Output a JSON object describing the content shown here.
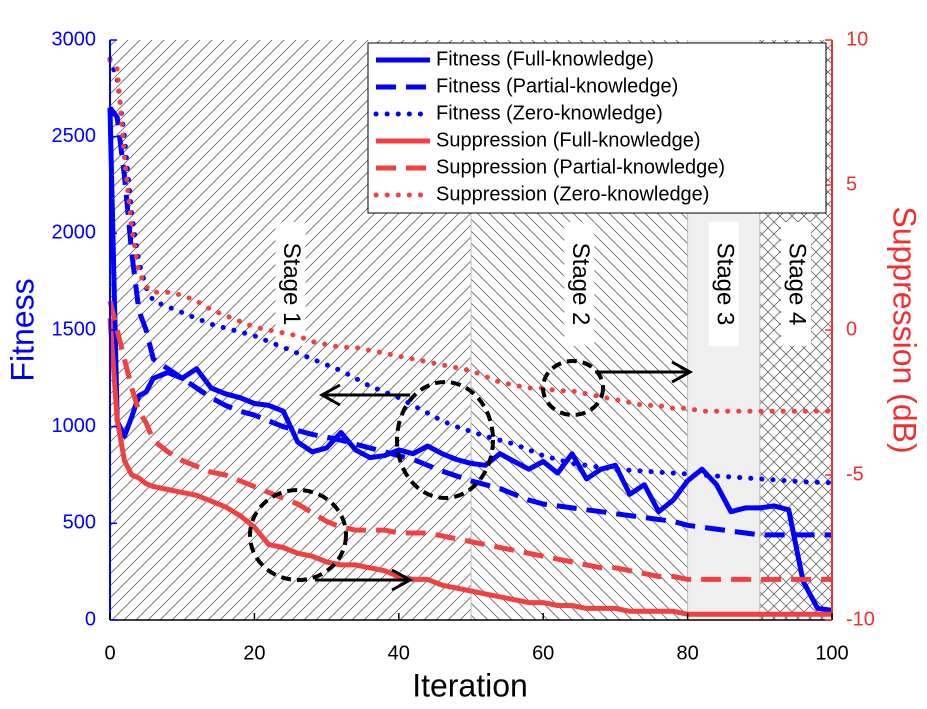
{
  "chart_data": {
    "type": "line",
    "x_label": "Iteration",
    "y_label": "Fitness",
    "y2_label": "Suppression (dB)",
    "x": [
      0,
      1,
      2,
      3,
      4,
      5,
      6,
      8,
      10,
      12,
      14,
      16,
      18,
      20,
      22,
      24,
      26,
      28,
      30,
      32,
      34,
      36,
      38,
      40,
      42,
      44,
      46,
      48,
      50,
      52,
      54,
      56,
      58,
      60,
      62,
      64,
      66,
      68,
      70,
      72,
      74,
      76,
      78,
      80,
      82,
      84,
      86,
      88,
      90,
      92,
      94,
      96,
      98,
      100
    ],
    "xlim": [
      0,
      100
    ],
    "xticks": [
      0,
      20,
      40,
      60,
      80,
      100
    ],
    "ylim": [
      0,
      3000
    ],
    "yticks": [
      0,
      500,
      1000,
      1500,
      2000,
      2500,
      3000
    ],
    "y2lim": [
      -10,
      10
    ],
    "y2ticks": [
      -10,
      -5,
      0,
      5,
      10
    ],
    "legend": "upper right",
    "stages": [
      {
        "label": "Stage 1",
        "start": 0,
        "end": 50,
        "pattern": "forward"
      },
      {
        "label": "Stage 2",
        "start": 50,
        "end": 80,
        "pattern": "back"
      },
      {
        "label": "Stage 3",
        "start": 80,
        "end": 90,
        "pattern": "solid"
      },
      {
        "label": "Stage 4",
        "start": 90,
        "end": 100,
        "pattern": "cross"
      }
    ],
    "series": [
      {
        "name": "Fitness (Full-knowledge)",
        "color": "#0000ff",
        "style": "solid",
        "axis": "y",
        "values": [
          2650,
          1030,
          950,
          1050,
          1160,
          1180,
          1250,
          1280,
          1250,
          1300,
          1200,
          1170,
          1150,
          1120,
          1110,
          1080,
          920,
          870,
          890,
          970,
          880,
          840,
          850,
          880,
          860,
          900,
          860,
          830,
          810,
          800,
          860,
          820,
          780,
          820,
          760,
          860,
          730,
          780,
          800,
          650,
          700,
          560,
          620,
          720,
          780,
          700,
          560,
          580,
          580,
          590,
          570,
          200,
          60,
          50
        ]
      },
      {
        "name": "Fitness (Partial-knowledge)",
        "color": "#0000ff",
        "style": "dashed",
        "axis": "y",
        "values": [
          2650,
          2600,
          2300,
          1900,
          1600,
          1500,
          1350,
          1300,
          1250,
          1200,
          1150,
          1110,
          1080,
          1060,
          1030,
          1000,
          980,
          960,
          946,
          930,
          910,
          890,
          870,
          850,
          830,
          800,
          770,
          745,
          720,
          700,
          680,
          650,
          620,
          600,
          590,
          580,
          570,
          560,
          550,
          540,
          530,
          520,
          510,
          490,
          480,
          470,
          460,
          450,
          440,
          440,
          440,
          440,
          440,
          440
        ]
      },
      {
        "name": "Fitness (Zero-knowledge)",
        "color": "#0000ff",
        "style": "dotted",
        "axis": "y",
        "values": [
          2900,
          2800,
          2500,
          2100,
          1850,
          1720,
          1650,
          1620,
          1590,
          1560,
          1530,
          1510,
          1490,
          1470,
          1440,
          1410,
          1380,
          1350,
          1320,
          1290,
          1250,
          1210,
          1180,
          1150,
          1110,
          1070,
          1030,
          1000,
          975,
          950,
          930,
          910,
          880,
          850,
          830,
          810,
          800,
          790,
          780,
          775,
          770,
          765,
          760,
          755,
          750,
          745,
          740,
          735,
          730,
          725,
          720,
          715,
          712,
          710
        ]
      },
      {
        "name": "Suppression (Full-knowledge)",
        "color": "#f04040",
        "style": "solid",
        "axis": "y2",
        "values": [
          0.4,
          -3.1,
          -4.5,
          -5.0,
          -5.1,
          -5.3,
          -5.4,
          -5.5,
          -5.6,
          -5.7,
          -5.9,
          -6.1,
          -6.4,
          -6.8,
          -7.4,
          -7.5,
          -7.7,
          -7.8,
          -8.0,
          -8.1,
          -8.1,
          -8.2,
          -8.3,
          -8.5,
          -8.6,
          -8.6,
          -8.8,
          -8.9,
          -9.0,
          -9.1,
          -9.2,
          -9.3,
          -9.4,
          -9.4,
          -9.5,
          -9.5,
          -9.6,
          -9.6,
          -9.6,
          -9.7,
          -9.7,
          -9.7,
          -9.7,
          -9.8,
          -9.8,
          -9.8,
          -9.8,
          -9.8,
          -9.8,
          -9.8,
          -9.8,
          -9.8,
          -9.8,
          -9.8
        ]
      },
      {
        "name": "Suppression (Partial-knowledge)",
        "color": "#f04040",
        "style": "dashed",
        "axis": "y2",
        "values": [
          1.0,
          0,
          -1,
          -2,
          -2.8,
          -3.2,
          -3.8,
          -4.2,
          -4.5,
          -4.7,
          -4.9,
          -5.0,
          -5.2,
          -5.4,
          -5.6,
          -5.8,
          -6.0,
          -6.3,
          -6.6,
          -6.8,
          -6.9,
          -6.9,
          -6.9,
          -7.0,
          -7.0,
          -7.0,
          -7.1,
          -7.2,
          -7.3,
          -7.4,
          -7.5,
          -7.6,
          -7.7,
          -7.8,
          -7.9,
          -8.0,
          -8.1,
          -8.2,
          -8.2,
          -8.3,
          -8.4,
          -8.5,
          -8.5,
          -8.6,
          -8.6,
          -8.6,
          -8.6,
          -8.6,
          -8.6,
          -8.6,
          -8.6,
          -8.6,
          -8.6,
          -8.6
        ]
      },
      {
        "name": "Suppression (Zero-knowledge)",
        "color": "#f04040",
        "style": "dotted",
        "axis": "y2",
        "values": [
          9.3,
          9.0,
          6.0,
          3.5,
          2.0,
          1.5,
          1.3,
          1.3,
          1.2,
          1.0,
          0.7,
          0.5,
          0.3,
          0.1,
          0.0,
          -0.1,
          -0.2,
          -0.4,
          -0.5,
          -0.6,
          -0.6,
          -0.7,
          -0.8,
          -0.9,
          -1.0,
          -1.1,
          -1.2,
          -1.3,
          -1.4,
          -1.6,
          -1.8,
          -1.9,
          -2.0,
          -2.0,
          -2.1,
          -2.1,
          -2.2,
          -2.3,
          -2.4,
          -2.5,
          -2.6,
          -2.6,
          -2.7,
          -2.7,
          -2.8,
          -2.8,
          -2.8,
          -2.8,
          -2.8,
          -2.8,
          -2.8,
          -2.8,
          -2.8,
          -2.8
        ]
      }
    ]
  }
}
